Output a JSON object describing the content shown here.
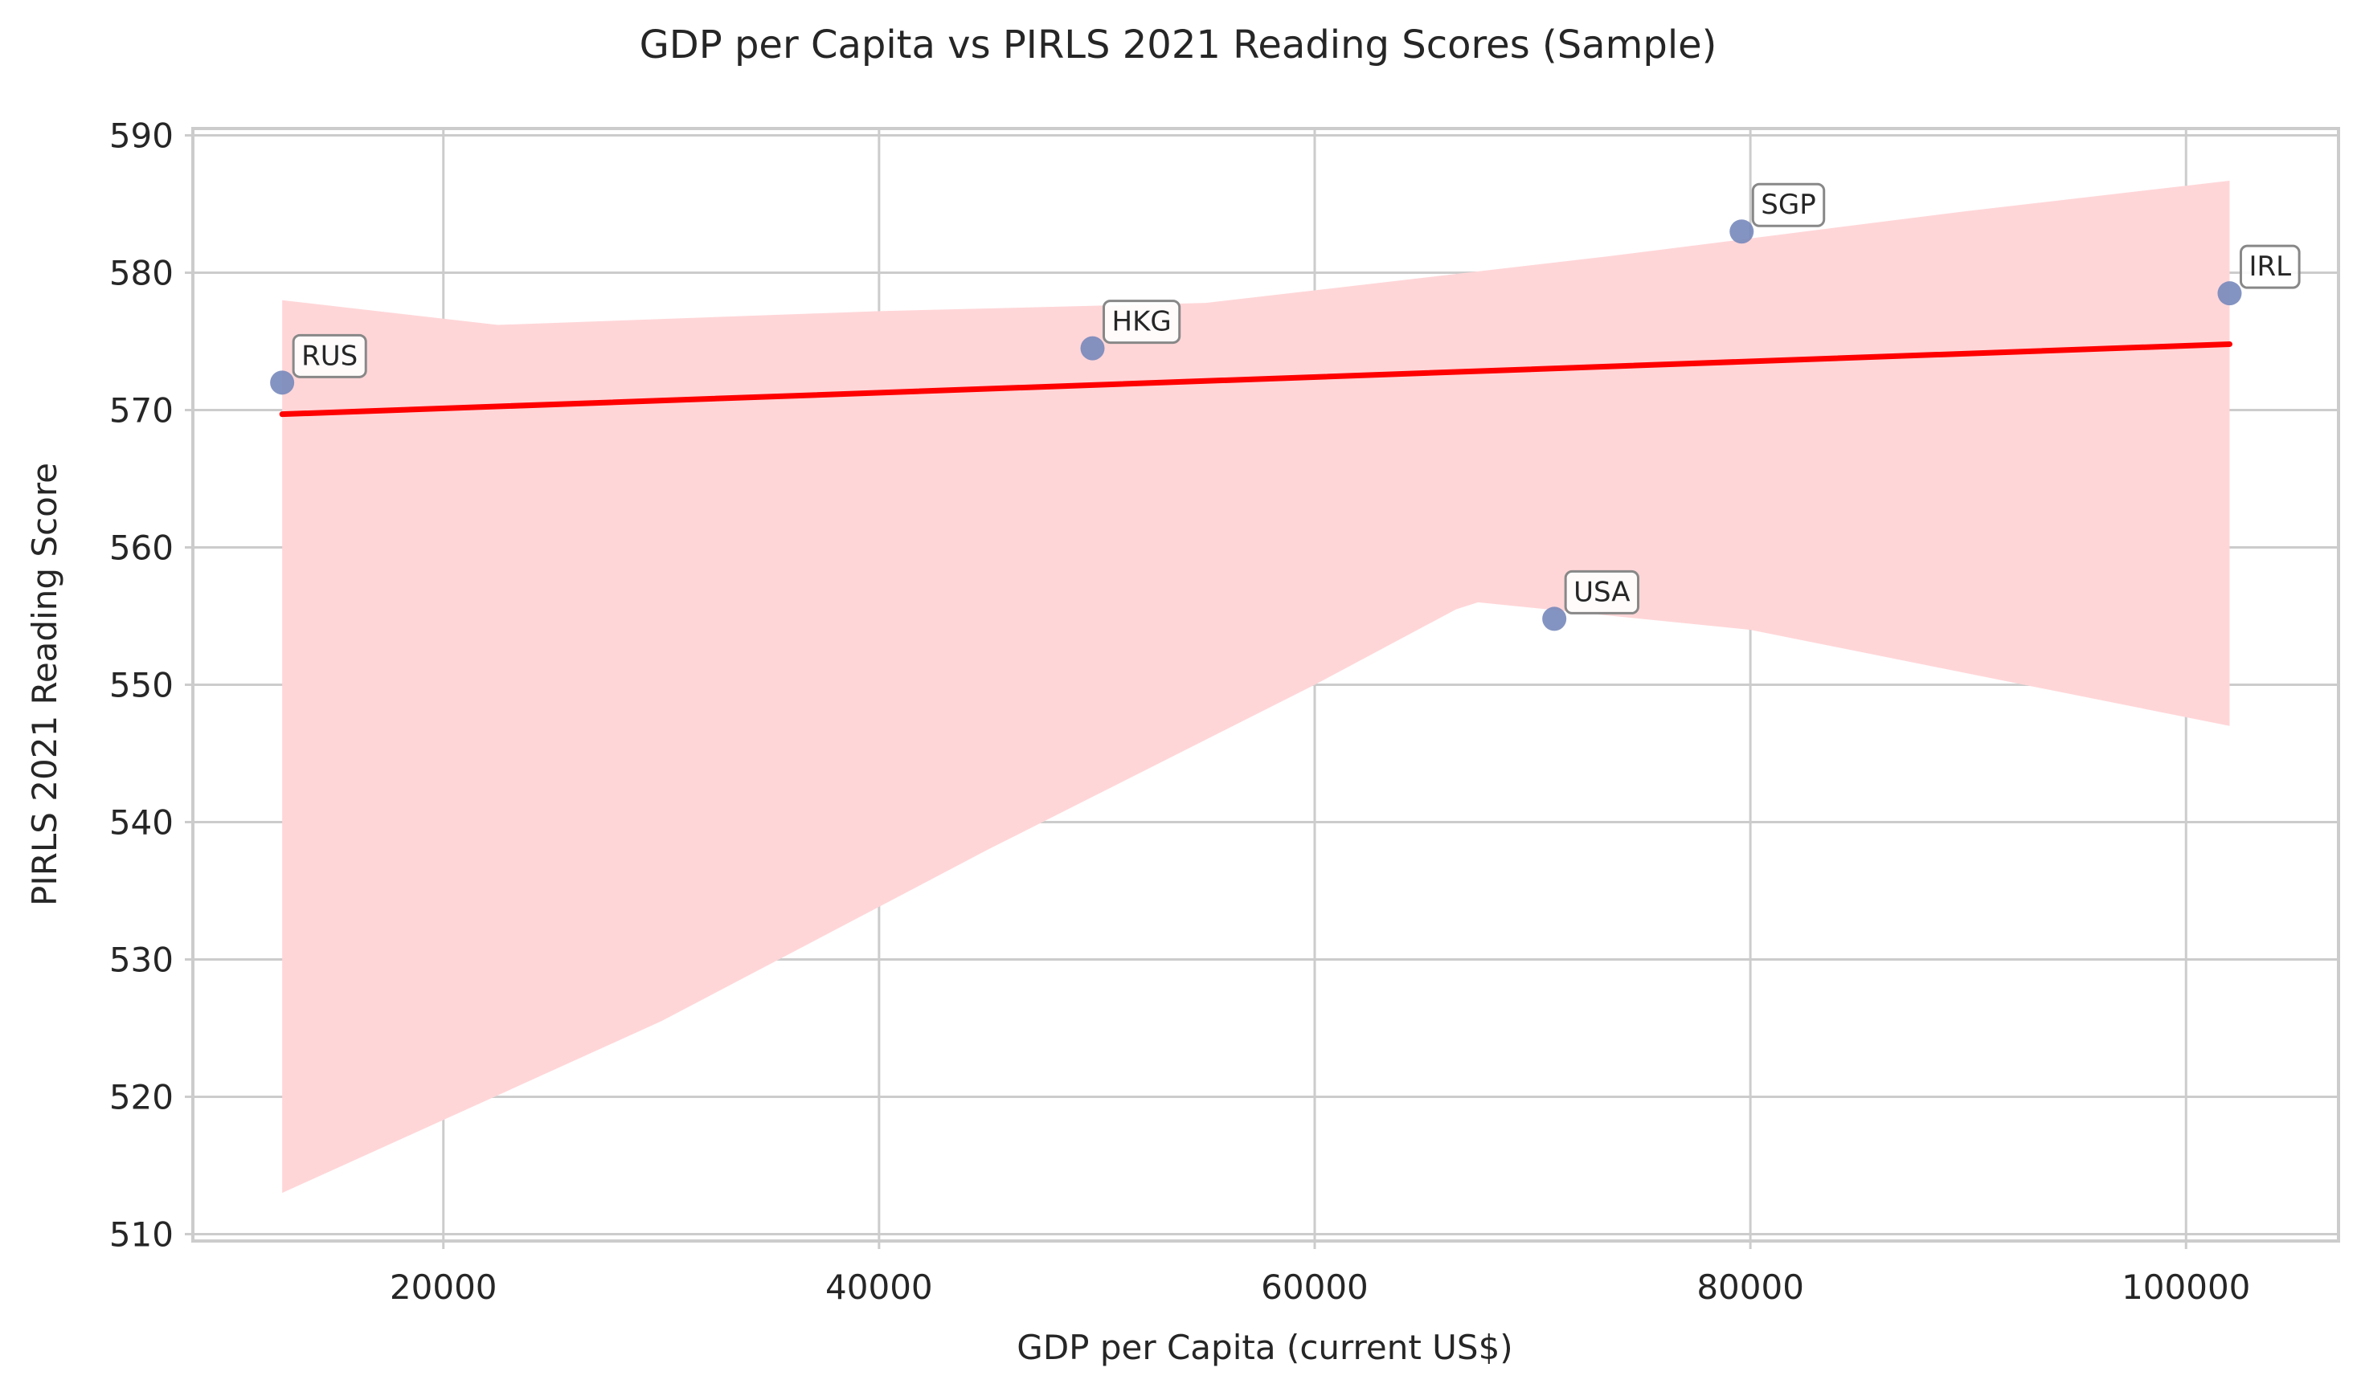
{
  "chart_data": {
    "type": "scatter",
    "title": "GDP per Capita vs PIRLS 2021 Reading Scores (Sample)",
    "xlabel": "GDP per Capita (current US$)",
    "ylabel": "PIRLS 2021 Reading Score",
    "xlim": [
      8500,
      107000
    ],
    "ylim": [
      509.5,
      590.5
    ],
    "xticks": [
      20000,
      40000,
      60000,
      80000,
      100000
    ],
    "yticks": [
      510,
      520,
      530,
      540,
      550,
      560,
      570,
      580,
      590
    ],
    "grid": true,
    "points": [
      {
        "label": "RUS",
        "x": 12600,
        "y": 572
      },
      {
        "label": "HKG",
        "x": 49800,
        "y": 574.5
      },
      {
        "label": "USA",
        "x": 71000,
        "y": 554.8
      },
      {
        "label": "SGP",
        "x": 79600,
        "y": 583
      },
      {
        "label": "IRL",
        "x": 102000,
        "y": 578.5
      }
    ],
    "regression_line": {
      "x": [
        12600,
        102000
      ],
      "y": [
        569.7,
        574.8
      ]
    },
    "confidence_band": {
      "upper": [
        [
          12600,
          578
        ],
        [
          22500,
          576.2
        ],
        [
          40000,
          577.2
        ],
        [
          55000,
          577.8
        ],
        [
          73500,
          581.2
        ],
        [
          90000,
          584.5
        ],
        [
          102000,
          586.7
        ]
      ],
      "lower": [
        [
          12600,
          513
        ],
        [
          30000,
          525.5
        ],
        [
          45000,
          538
        ],
        [
          60000,
          550
        ],
        [
          66500,
          555.5
        ],
        [
          67500,
          556
        ],
        [
          80000,
          554
        ],
        [
          102000,
          547
        ]
      ]
    },
    "colors": {
      "points": "#7788bb",
      "regression": "#ff0000",
      "band": "#ffd6d8"
    }
  }
}
